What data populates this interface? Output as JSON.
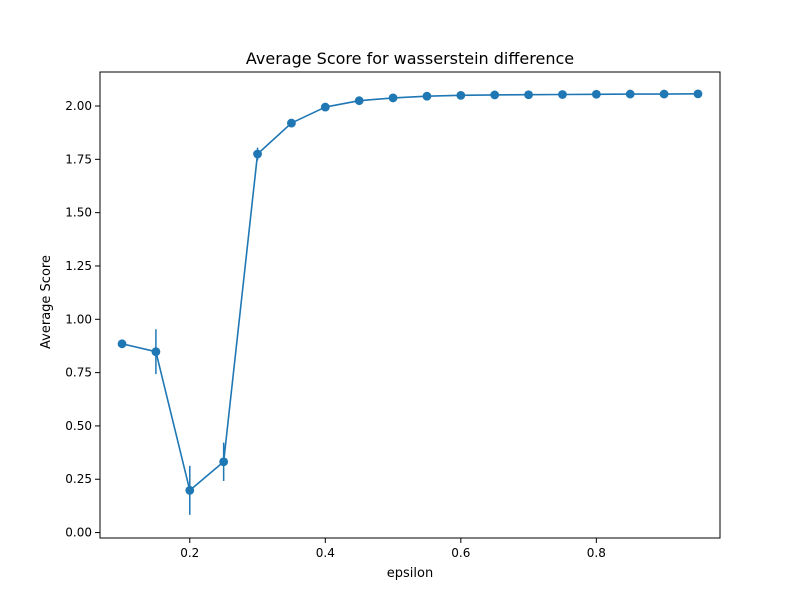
{
  "chart_data": {
    "type": "line",
    "title": "Average Score for wasserstein difference",
    "xlabel": "epsilon",
    "ylabel": "Average Score",
    "xlim": [
      0.0675,
      0.9825
    ],
    "ylim": [
      -0.0255,
      2.1595
    ],
    "x_ticks": [
      {
        "value": 0.2,
        "label": "0.2"
      },
      {
        "value": 0.4,
        "label": "0.4"
      },
      {
        "value": 0.6,
        "label": "0.6"
      },
      {
        "value": 0.8,
        "label": "0.8"
      }
    ],
    "y_ticks": [
      {
        "value": 0.0,
        "label": "0.00"
      },
      {
        "value": 0.25,
        "label": "0.25"
      },
      {
        "value": 0.5,
        "label": "0.50"
      },
      {
        "value": 0.75,
        "label": "0.75"
      },
      {
        "value": 1.0,
        "label": "1.00"
      },
      {
        "value": 1.25,
        "label": "1.25"
      },
      {
        "value": 1.5,
        "label": "1.50"
      },
      {
        "value": 1.75,
        "label": "1.75"
      },
      {
        "value": 2.0,
        "label": "2.00"
      }
    ],
    "grid": false,
    "series": [
      {
        "color": "#1f77b4",
        "x": [
          0.1,
          0.15,
          0.2,
          0.25,
          0.3,
          0.35,
          0.4,
          0.45,
          0.5,
          0.55,
          0.6,
          0.65,
          0.7,
          0.75,
          0.8,
          0.85,
          0.9,
          0.95
        ],
        "y": [
          0.885,
          0.848,
          0.198,
          0.332,
          1.775,
          1.92,
          1.995,
          2.025,
          2.038,
          2.046,
          2.05,
          2.052,
          2.053,
          2.054,
          2.055,
          2.056,
          2.056,
          2.057
        ],
        "yerr": [
          0.0,
          0.105,
          0.115,
          0.09,
          0.03,
          0.0,
          0.0,
          0.0,
          0.0,
          0.0,
          0.0,
          0.0,
          0.0,
          0.0,
          0.0,
          0.0,
          0.0,
          0.0
        ]
      }
    ]
  }
}
